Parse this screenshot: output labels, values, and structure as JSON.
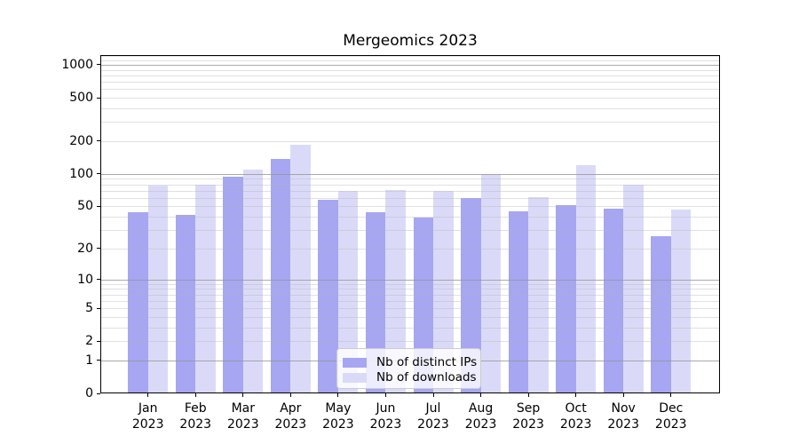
{
  "chart_data": {
    "type": "bar",
    "title": "Mergeomics 2023",
    "year_label": "2023",
    "months": [
      "Jan",
      "Feb",
      "Mar",
      "Apr",
      "May",
      "Jun",
      "Jul",
      "Aug",
      "Sep",
      "Oct",
      "Nov",
      "Dec"
    ],
    "series": [
      {
        "name": "Nb of distinct IPs",
        "color": "#a6a6f2",
        "values": [
          44,
          42,
          94,
          137,
          58,
          44,
          39,
          60,
          45,
          51,
          48,
          26
        ]
      },
      {
        "name": "Nb of downloads",
        "color": "#dadaf8",
        "values": [
          78,
          80,
          110,
          185,
          70,
          71,
          70,
          100,
          61,
          120,
          80,
          47
        ]
      }
    ],
    "y_axis": {
      "scale": "log1p",
      "tick_values": [
        1000,
        500,
        200,
        100,
        50,
        20,
        10,
        5,
        2,
        1,
        0
      ],
      "tick_labels": [
        "1000",
        "500",
        "200",
        "100",
        "50",
        "20",
        "10",
        "5",
        "2",
        "1",
        "0"
      ],
      "ylim": [
        0,
        1228
      ],
      "major_gridlines": [
        1,
        10,
        100,
        1000
      ],
      "minor_gridlines": [
        2,
        3,
        4,
        5,
        6,
        7,
        8,
        9,
        20,
        30,
        40,
        50,
        60,
        70,
        80,
        90,
        200,
        300,
        400,
        500,
        600,
        700,
        800,
        900,
        1100,
        1200
      ]
    },
    "x_axis": {
      "tick_labels_line1": [
        "Jan",
        "Feb",
        "Mar",
        "Apr",
        "May",
        "Jun",
        "Jul",
        "Aug",
        "Sep",
        "Oct",
        "Nov",
        "Dec"
      ],
      "tick_labels_line2": "2023"
    },
    "legend": {
      "position": "lower-center"
    },
    "grid": "horizontal-above-bars",
    "background_color": "#ffffff"
  }
}
